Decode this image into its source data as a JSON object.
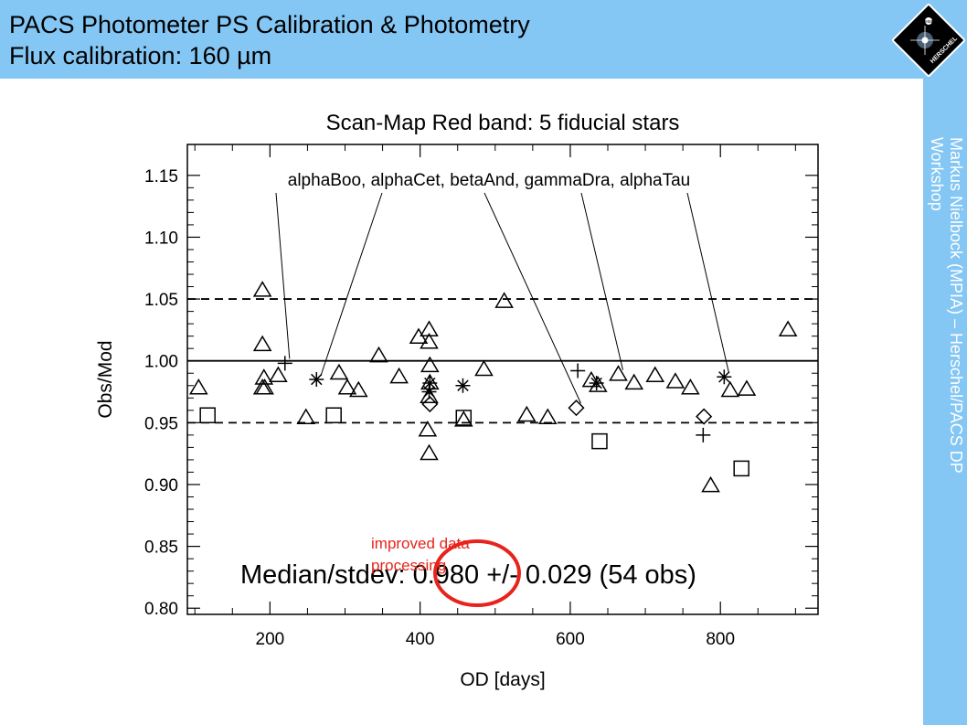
{
  "slide": {
    "title_line1": "PACS Photometer PS Calibration & Photometry",
    "title_line2": "Flux calibration: 160 µm",
    "side_text_line1": "Markus Nielbock (MPIA) – Herschel/PACS DP",
    "side_text_line2": "Workshop",
    "logo_text": "HERSCHEL",
    "logo_badge": "esa",
    "annotation": "improved data processing",
    "header_color": "#84c6f4",
    "annotation_color": "#e8231c"
  },
  "chart_data": {
    "type": "scatter",
    "title": "Scan-Map Red band: 5 fiducial stars",
    "xlabel": "OD [days]",
    "ylabel": "Obs/Mod",
    "xlim": [
      90,
      930
    ],
    "ylim": [
      0.795,
      1.175
    ],
    "xticks": [
      "200",
      "400",
      "600",
      "800"
    ],
    "yticks": [
      "0.80",
      "0.85",
      "0.90",
      "0.95",
      "1.00",
      "1.05",
      "1.10",
      "1.15"
    ],
    "legend_text": "alphaBoo, alphaCet, betaAnd, gammaDra, alphaTau",
    "stats_text": "Median/stdev: 0.980 +/- 0.029 (54 obs)",
    "median": 0.98,
    "reference_line": 1.0,
    "dashed_lines": [
      0.95,
      1.05
    ],
    "series": [
      {
        "name": "alphaBoo",
        "marker": "plus",
        "points": [
          [
            220,
            0.998
          ],
          [
            610,
            0.992
          ],
          [
            777,
            0.94
          ]
        ]
      },
      {
        "name": "alphaCet",
        "marker": "asterisk",
        "points": [
          [
            262,
            0.985
          ],
          [
            413,
            0.982
          ],
          [
            457,
            0.98
          ],
          [
            412,
            0.975
          ],
          [
            635,
            0.982
          ],
          [
            805,
            0.987
          ]
        ]
      },
      {
        "name": "betaAnd",
        "marker": "diamond",
        "points": [
          [
            413,
            0.965
          ],
          [
            608,
            0.962
          ],
          [
            778,
            0.955
          ]
        ]
      },
      {
        "name": "gammaDra",
        "marker": "triangle",
        "points": [
          [
            105,
            0.978
          ],
          [
            190,
            1.057
          ],
          [
            190,
            1.013
          ],
          [
            192,
            0.986
          ],
          [
            190,
            0.978
          ],
          [
            193,
            0.978
          ],
          [
            211,
            0.988
          ],
          [
            248,
            0.954
          ],
          [
            292,
            0.99
          ],
          [
            303,
            0.978
          ],
          [
            318,
            0.976
          ],
          [
            345,
            1.004
          ],
          [
            372,
            0.987
          ],
          [
            398,
            1.019
          ],
          [
            412,
            1.025
          ],
          [
            412,
            1.015
          ],
          [
            413,
            0.996
          ],
          [
            413,
            0.982
          ],
          [
            412,
            0.971
          ],
          [
            410,
            0.944
          ],
          [
            412,
            0.925
          ],
          [
            458,
            0.952
          ],
          [
            485,
            0.993
          ],
          [
            512,
            1.048
          ],
          [
            542,
            0.956
          ],
          [
            570,
            0.954
          ],
          [
            628,
            0.984
          ],
          [
            637,
            0.98
          ],
          [
            664,
            0.989
          ],
          [
            685,
            0.982
          ],
          [
            713,
            0.988
          ],
          [
            740,
            0.983
          ],
          [
            760,
            0.978
          ],
          [
            787,
            0.899
          ],
          [
            813,
            0.976
          ],
          [
            835,
            0.977
          ],
          [
            890,
            1.025
          ]
        ]
      },
      {
        "name": "alphaTau",
        "marker": "square",
        "points": [
          [
            117,
            0.956
          ],
          [
            285,
            0.956
          ],
          [
            458,
            0.954
          ],
          [
            639,
            0.935
          ],
          [
            828,
            0.913
          ]
        ]
      }
    ],
    "pointer_targets": [
      [
        220,
        0.998
      ],
      [
        262,
        0.985
      ],
      [
        608,
        0.962
      ],
      [
        664,
        0.989
      ],
      [
        805,
        0.987
      ]
    ]
  }
}
